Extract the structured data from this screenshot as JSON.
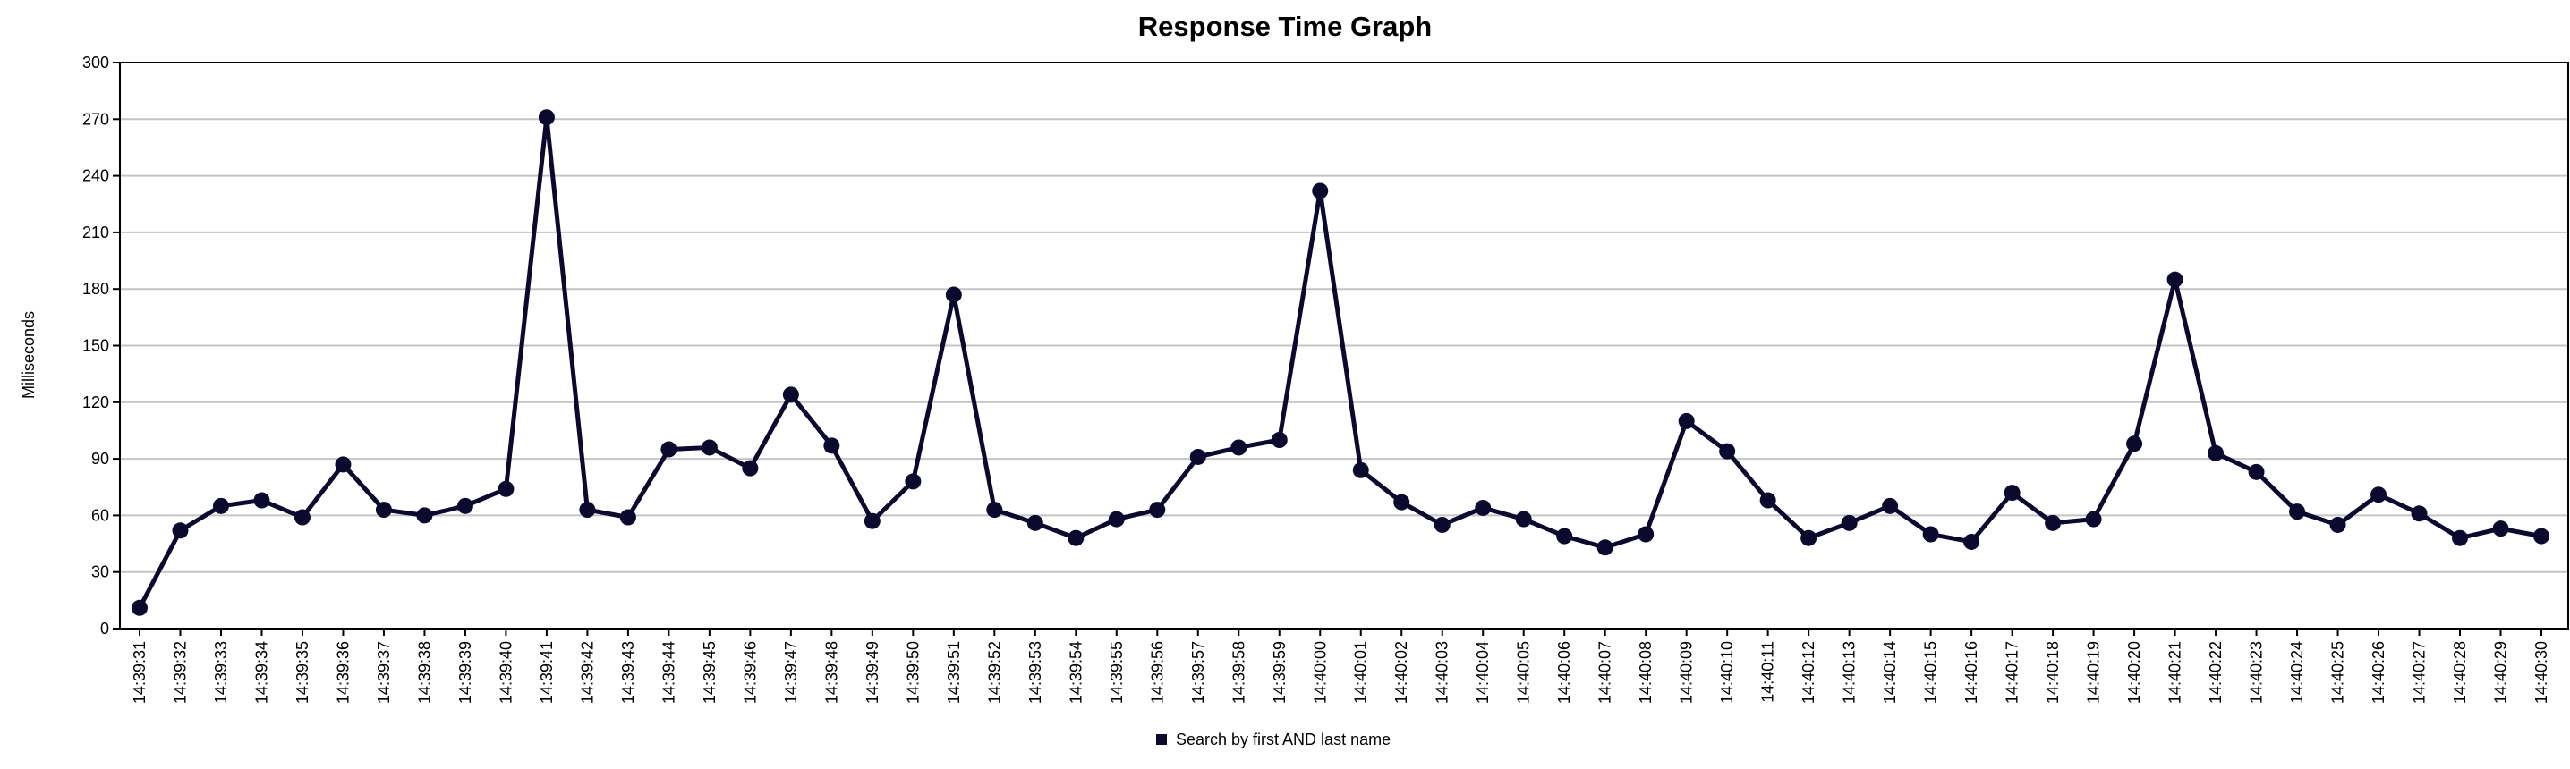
{
  "chart_data": {
    "type": "line",
    "title": "Response Time Graph",
    "xlabel": "",
    "ylabel": "Milliseconds",
    "ylim": [
      0,
      300
    ],
    "yticks": [
      0,
      30,
      60,
      90,
      120,
      150,
      180,
      210,
      240,
      270,
      300
    ],
    "grid": true,
    "legend_position": "bottom-center",
    "x": [
      "14:39:31",
      "14:39:32",
      "14:39:33",
      "14:39:34",
      "14:39:35",
      "14:39:36",
      "14:39:37",
      "14:39:38",
      "14:39:39",
      "14:39:40",
      "14:39:41",
      "14:39:42",
      "14:39:43",
      "14:39:44",
      "14:39:45",
      "14:39:46",
      "14:39:47",
      "14:39:48",
      "14:39:49",
      "14:39:50",
      "14:39:51",
      "14:39:52",
      "14:39:53",
      "14:39:54",
      "14:39:55",
      "14:39:56",
      "14:39:57",
      "14:39:58",
      "14:39:59",
      "14:40:00",
      "14:40:01",
      "14:40:02",
      "14:40:03",
      "14:40:04",
      "14:40:05",
      "14:40:06",
      "14:40:07",
      "14:40:08",
      "14:40:09",
      "14:40:10",
      "14:40:11",
      "14:40:12",
      "14:40:13",
      "14:40:14",
      "14:40:15",
      "14:40:16",
      "14:40:17",
      "14:40:18",
      "14:40:19",
      "14:40:20",
      "14:40:21",
      "14:40:22",
      "14:40:23",
      "14:40:24",
      "14:40:25",
      "14:40:26",
      "14:40:27",
      "14:40:28",
      "14:40:29",
      "14:40:30"
    ],
    "series": [
      {
        "name": "Search by first AND last name",
        "color": "#0b0a2e",
        "values": [
          11,
          52,
          65,
          68,
          59,
          87,
          63,
          60,
          65,
          74,
          271,
          63,
          59,
          95,
          96,
          85,
          124,
          97,
          57,
          78,
          177,
          63,
          56,
          48,
          58,
          63,
          91,
          96,
          100,
          232,
          84,
          67,
          55,
          64,
          58,
          49,
          43,
          50,
          110,
          94,
          68,
          48,
          56,
          65,
          50,
          46,
          72,
          56,
          58,
          98,
          185,
          93,
          83,
          62,
          55,
          71,
          61,
          48,
          53,
          49
        ]
      }
    ]
  }
}
